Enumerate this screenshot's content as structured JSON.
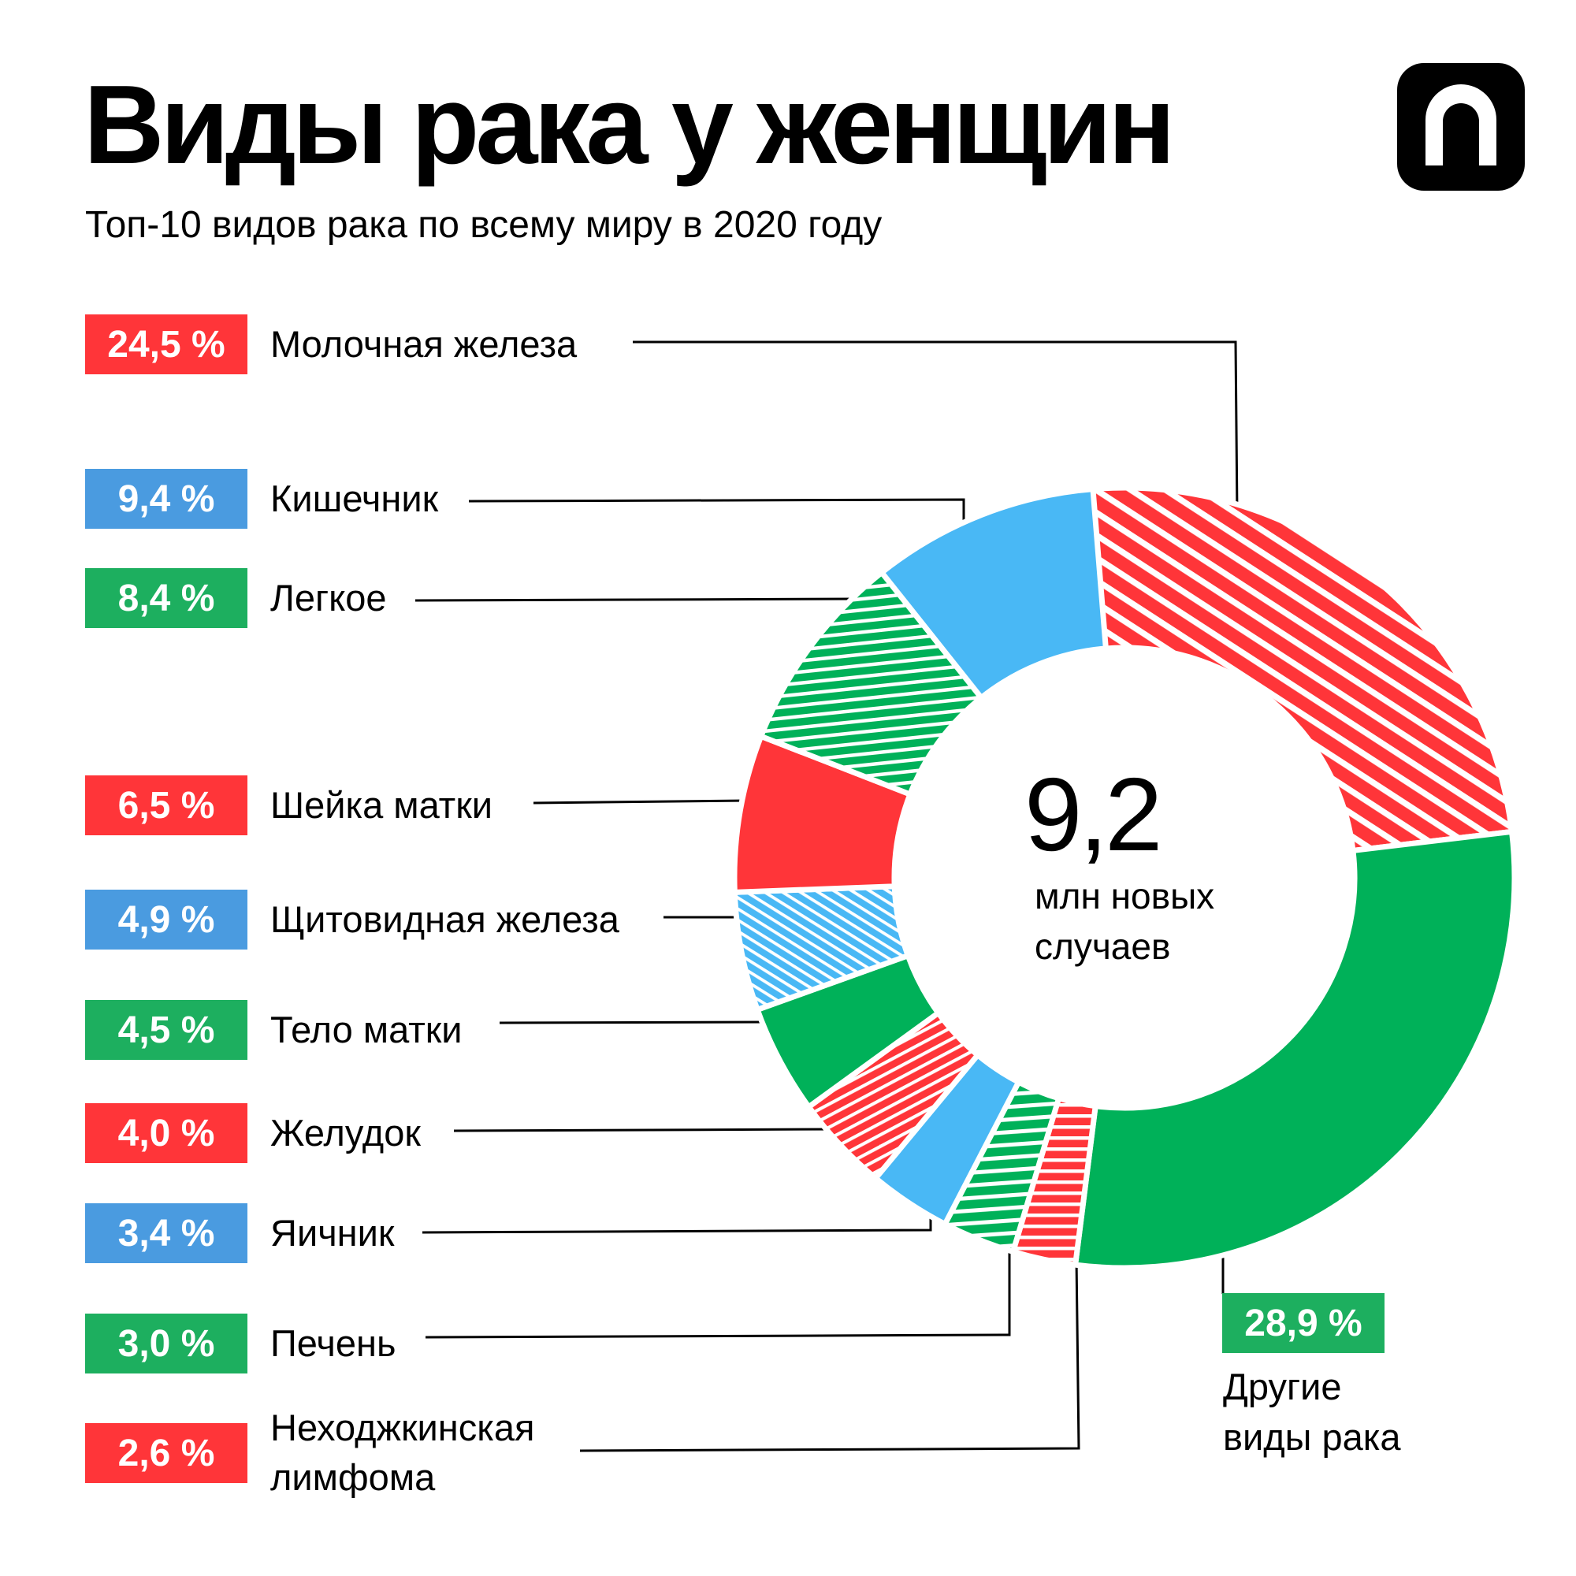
{
  "title": "Виды рака у женщин",
  "subtitle": "Топ-10 видов рака по всему миру в 2020 году",
  "logo_icon": "n-logo-icon",
  "colors": {
    "red": "#FF3539",
    "blue": "#4A9BE0",
    "blue_slice": "#49B8F5",
    "green": "#1DAF5F",
    "green_slice": "#00B159"
  },
  "chart_data": {
    "type": "pie",
    "subtype": "donut",
    "center_value": "9,2",
    "center_label": [
      "млн новых",
      "случаев"
    ],
    "slices": [
      {
        "label": "Молочная железа",
        "value": 24.5,
        "text": "24,5 %",
        "color": "red",
        "hatched": true
      },
      {
        "label": "Другие виды рака",
        "value": 28.9,
        "text": "28,9 %",
        "color": "green",
        "hatched": false
      },
      {
        "label": "Неходжкинская лимфома",
        "value": 2.6,
        "text": "2,6 %",
        "color": "red",
        "hatched": true
      },
      {
        "label": "Печень",
        "value": 3.0,
        "text": "3,0 %",
        "color": "green",
        "hatched": true
      },
      {
        "label": "Яичник",
        "value": 3.4,
        "text": "3,4 %",
        "color": "blue",
        "hatched": false
      },
      {
        "label": "Желудок",
        "value": 4.0,
        "text": "4,0 %",
        "color": "red",
        "hatched": true
      },
      {
        "label": "Тело матки",
        "value": 4.5,
        "text": "4,5 %",
        "color": "green",
        "hatched": false
      },
      {
        "label": "Щитовидная железа",
        "value": 4.9,
        "text": "4,9 %",
        "color": "blue",
        "hatched": true
      },
      {
        "label": "Шейка матки",
        "value": 6.5,
        "text": "6,5 %",
        "color": "red",
        "hatched": false
      },
      {
        "label": "Легкое",
        "value": 8.4,
        "text": "8,4 %",
        "color": "green",
        "hatched": true
      },
      {
        "label": "Кишечник",
        "value": 9.4,
        "text": "9,4 %",
        "color": "blue",
        "hatched": false
      }
    ]
  },
  "legend": [
    {
      "text": "24,5 %",
      "label": "Молочная железа",
      "color": "red"
    },
    {
      "text": "9,4 %",
      "label": "Кишечник",
      "color": "blue"
    },
    {
      "text": "8,4 %",
      "label": "Легкое",
      "color": "green"
    },
    {
      "text": "6,5 %",
      "label": "Шейка матки",
      "color": "red"
    },
    {
      "text": "4,9 %",
      "label": "Щитовидная железа",
      "color": "blue"
    },
    {
      "text": "4,5 %",
      "label": "Тело матки",
      "color": "green"
    },
    {
      "text": "4,0 %",
      "label": "Желудок",
      "color": "red"
    },
    {
      "text": "3,4 %",
      "label": "Яичник",
      "color": "blue"
    },
    {
      "text": "3,0 %",
      "label": "Печень",
      "color": "green"
    },
    {
      "text": "2,6 %",
      "label": "Неходжкинская лимфома",
      "color": "red"
    }
  ],
  "others": {
    "text": "28,9 %",
    "label": "Другие виды рака",
    "label_lines": [
      "Другие",
      "виды рака"
    ]
  }
}
